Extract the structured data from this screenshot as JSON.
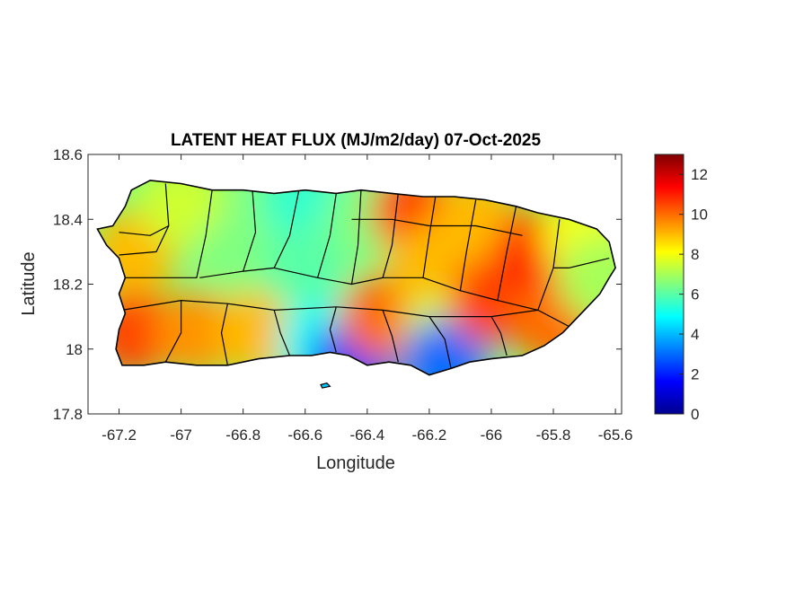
{
  "chart_data": {
    "type": "heatmap",
    "title": "LATENT HEAT FLUX (MJ/m2/day) 07-Oct-2025",
    "xlabel": "Longitude",
    "ylabel": "Latitude",
    "xlim": [
      -67.3,
      -65.58
    ],
    "ylim": [
      17.8,
      18.6
    ],
    "xticks": [
      -67.2,
      -67,
      -66.8,
      -66.6,
      -66.4,
      -66.2,
      -66,
      -65.8,
      -65.6
    ],
    "xtick_labels": [
      "-67.2",
      "-67",
      "-66.8",
      "-66.6",
      "-66.4",
      "-66.2",
      "-66",
      "-65.8",
      "-65.6"
    ],
    "yticks": [
      17.8,
      18,
      18.2,
      18.4,
      18.6
    ],
    "ytick_labels": [
      "17.8",
      "18",
      "18.2",
      "18.4",
      "18.6"
    ],
    "colorbar": {
      "colormap": "jet",
      "range": [
        0,
        13
      ],
      "ticks": [
        0,
        2,
        4,
        6,
        8,
        10,
        12
      ],
      "tick_labels": [
        "0",
        "2",
        "4",
        "6",
        "8",
        "10",
        "12"
      ]
    },
    "regions": [
      {
        "lon": -67.15,
        "lat": 18.05,
        "value": 10.5
      },
      {
        "lon": -67.15,
        "lat": 18.3,
        "value": 9.0
      },
      {
        "lon": -67.0,
        "lat": 18.45,
        "value": 7.5
      },
      {
        "lon": -66.95,
        "lat": 18.05,
        "value": 9.5
      },
      {
        "lon": -66.8,
        "lat": 18.3,
        "value": 6.5
      },
      {
        "lon": -66.75,
        "lat": 18.05,
        "value": 9.0
      },
      {
        "lon": -66.6,
        "lat": 18.45,
        "value": 5.5
      },
      {
        "lon": -66.6,
        "lat": 18.25,
        "value": 6.0
      },
      {
        "lon": -66.55,
        "lat": 18.02,
        "value": 5.0
      },
      {
        "lon": -66.45,
        "lat": 17.96,
        "value": 2.5
      },
      {
        "lon": -66.4,
        "lat": 18.4,
        "value": 6.5
      },
      {
        "lon": -66.35,
        "lat": 18.1,
        "value": 10.0
      },
      {
        "lon": -66.25,
        "lat": 18.42,
        "value": 10.5
      },
      {
        "lon": -66.2,
        "lat": 18.25,
        "value": 9.0
      },
      {
        "lon": -66.15,
        "lat": 18.05,
        "value": 7.5
      },
      {
        "lon": -66.15,
        "lat": 17.96,
        "value": 3.0
      },
      {
        "lon": -66.05,
        "lat": 18.4,
        "value": 9.0
      },
      {
        "lon": -66.0,
        "lat": 18.15,
        "value": 10.5
      },
      {
        "lon": -65.85,
        "lat": 18.3,
        "value": 11.0
      },
      {
        "lon": -65.8,
        "lat": 18.08,
        "value": 10.0
      },
      {
        "lon": -65.7,
        "lat": 18.35,
        "value": 8.0
      },
      {
        "lon": -65.65,
        "lat": 18.22,
        "value": 7.0
      }
    ],
    "legend": "colorbar-right",
    "grid": false
  }
}
